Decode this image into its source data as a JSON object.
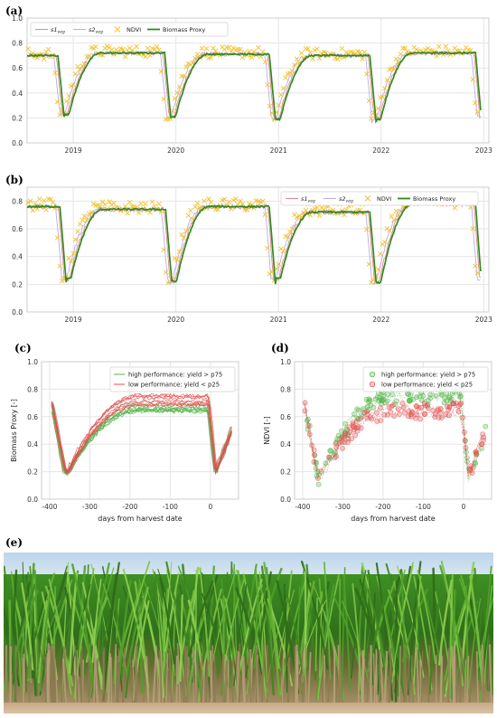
{
  "panels": {
    "a": "(a)",
    "b": "(b)",
    "c": "(c)",
    "d": "(d)",
    "e": "(e)"
  },
  "colors": {
    "s1": "#e7868c",
    "s2": "#b9aee0",
    "ndvi": "#f2c12e",
    "proxy": "#2f8a1e",
    "high": "#52b348",
    "low": "#e14d4d",
    "grid": "#e5e5e5",
    "axis": "#cccccc"
  },
  "chart_data": [
    {
      "id": "a",
      "type": "line",
      "x_ticks": [
        "2019",
        "2020",
        "2021",
        "2022",
        "2023"
      ],
      "y_ticks": [
        "0.0",
        "0.2",
        "0.4",
        "0.6",
        "0.8",
        "1.0"
      ],
      "ylim": [
        0,
        1.0
      ],
      "legend": [
        {
          "key": "s1",
          "base": "s1",
          "sub": "veg",
          "style": "line"
        },
        {
          "key": "s2",
          "base": "s2",
          "sub": "veg",
          "style": "line"
        },
        {
          "key": "ndvi",
          "base": "NDVI",
          "sub": "",
          "style": "x"
        },
        {
          "key": "proxy",
          "base": "Biomass Proxy",
          "sub": "",
          "style": "thick"
        }
      ],
      "legend_placement": "top-left",
      "harvests": [
        2018.88,
        2019.92,
        2020.94,
        2021.92,
        2022.95
      ],
      "plateau": [
        0.7,
        0.72,
        0.71,
        0.7,
        0.72,
        0.74
      ],
      "minimum": [
        0.21,
        0.19,
        0.17,
        0.17,
        0.19
      ]
    },
    {
      "id": "b",
      "type": "line",
      "x_ticks": [
        "2019",
        "2020",
        "2021",
        "2022",
        "2023"
      ],
      "y_ticks": [
        "0.0",
        "0.2",
        "0.4",
        "0.6",
        "0.8"
      ],
      "ylim": [
        0,
        0.9
      ],
      "legend": [
        {
          "key": "s1",
          "base": "s1",
          "sub": "veg",
          "style": "line"
        },
        {
          "key": "s2",
          "base": "s2",
          "sub": "veg",
          "style": "line"
        },
        {
          "key": "ndvi",
          "base": "NDVI",
          "sub": "",
          "style": "x"
        },
        {
          "key": "proxy",
          "base": "Biomass Proxy",
          "sub": "",
          "style": "thick"
        }
      ],
      "legend_placement": "top-right",
      "harvests": [
        2018.9,
        2019.93,
        2020.94,
        2021.92,
        2022.95
      ],
      "plateau": [
        0.76,
        0.74,
        0.76,
        0.72,
        0.78,
        0.72
      ],
      "minimum": [
        0.22,
        0.2,
        0.22,
        0.19,
        0.22
      ]
    },
    {
      "id": "c",
      "type": "line",
      "xlabel": "days from harvest date",
      "ylabel": "Biomass Proxy [-]",
      "x_ticks": [
        "-400",
        "-300",
        "-200",
        "-100",
        "0"
      ],
      "x_tick_values": [
        -400,
        -300,
        -200,
        -100,
        0
      ],
      "y_ticks": [
        "0.0",
        "0.2",
        "0.4",
        "0.6",
        "0.8",
        "1.0"
      ],
      "xlim": [
        -420,
        70
      ],
      "ylim": [
        0,
        1.0
      ],
      "legend": [
        {
          "key": "high",
          "label": "high performance: yield > p75"
        },
        {
          "key": "low",
          "label": "low performance: yield < p25"
        }
      ],
      "legend_placement": "top-right",
      "series": [
        {
          "name": "high performance: yield > p75",
          "plateau": 0.67,
          "min": 0.19
        },
        {
          "name": "low performance: yield < p25",
          "plateau": 0.72,
          "min": 0.2
        }
      ]
    },
    {
      "id": "d",
      "type": "scatter",
      "xlabel": "days from harvest date",
      "ylabel": "NDVI [-]",
      "x_ticks": [
        "-400",
        "-300",
        "-200",
        "-100",
        "0"
      ],
      "x_tick_values": [
        -400,
        -300,
        -200,
        -100,
        0
      ],
      "y_ticks": [
        "0.0",
        "0.2",
        "0.4",
        "0.6",
        "0.8",
        "1.0"
      ],
      "xlim": [
        -420,
        70
      ],
      "ylim": [
        0,
        1.0
      ],
      "legend": [
        {
          "key": "high",
          "label": "high performance: yield > p75"
        },
        {
          "key": "low",
          "label": "low performance: yield < p25"
        }
      ],
      "legend_placement": "top-right",
      "series": [
        {
          "name": "high performance: yield > p75",
          "plateau": 0.75,
          "min": 0.16
        },
        {
          "name": "low performance: yield < p25",
          "plateau": 0.64,
          "min": 0.17
        }
      ]
    }
  ]
}
